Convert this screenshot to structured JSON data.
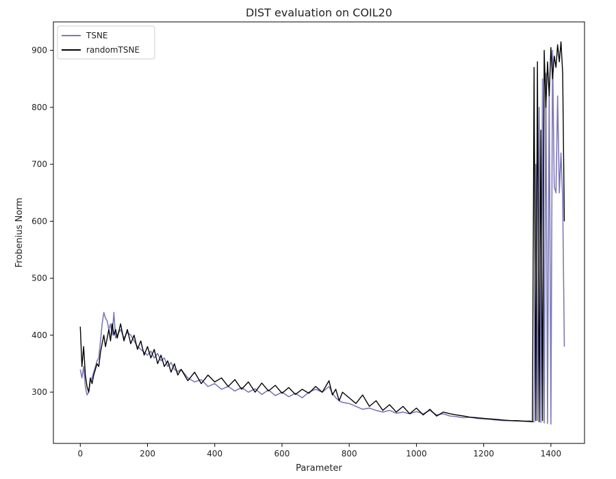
{
  "chart_data": {
    "type": "line",
    "title": "DIST evaluation on COIL20",
    "xlabel": "Parameter",
    "ylabel": "Frobenius Norm",
    "xlim": [
      -80,
      1500
    ],
    "ylim": [
      210,
      950
    ],
    "xticks": [
      0,
      200,
      400,
      600,
      800,
      1000,
      1200,
      1400
    ],
    "yticks": [
      300,
      400,
      500,
      600,
      700,
      800,
      900
    ],
    "grid": false,
    "legend_position": "top-left",
    "series": [
      {
        "name": "TSNE",
        "color": "#7b79b8",
        "x": [
          0,
          5,
          10,
          15,
          20,
          25,
          30,
          35,
          40,
          45,
          50,
          55,
          60,
          65,
          70,
          75,
          80,
          85,
          90,
          95,
          100,
          105,
          110,
          120,
          130,
          140,
          150,
          160,
          170,
          180,
          190,
          200,
          210,
          220,
          230,
          240,
          250,
          260,
          270,
          280,
          290,
          300,
          320,
          340,
          360,
          380,
          400,
          420,
          440,
          460,
          480,
          500,
          520,
          540,
          560,
          580,
          600,
          620,
          640,
          660,
          680,
          700,
          720,
          740,
          750,
          760,
          770,
          780,
          800,
          820,
          840,
          860,
          880,
          900,
          920,
          940,
          960,
          980,
          1000,
          1020,
          1040,
          1060,
          1080,
          1100,
          1120,
          1140,
          1160,
          1180,
          1200,
          1220,
          1240,
          1260,
          1280,
          1300,
          1320,
          1340,
          1350,
          1355,
          1360,
          1365,
          1370,
          1375,
          1380,
          1385,
          1390,
          1395,
          1400,
          1405,
          1410,
          1415,
          1420,
          1425,
          1430,
          1435,
          1440
        ],
        "y": [
          340,
          325,
          345,
          310,
          295,
          300,
          320,
          325,
          335,
          345,
          355,
          360,
          390,
          420,
          440,
          430,
          425,
          410,
          420,
          400,
          440,
          395,
          400,
          410,
          395,
          405,
          400,
          390,
          380,
          375,
          370,
          365,
          372,
          360,
          368,
          355,
          360,
          345,
          352,
          340,
          336,
          340,
          325,
          318,
          322,
          310,
          315,
          305,
          310,
          302,
          308,
          300,
          306,
          296,
          304,
          294,
          300,
          292,
          298,
          290,
          300,
          305,
          300,
          310,
          298,
          290,
          285,
          282,
          280,
          275,
          270,
          272,
          268,
          265,
          268,
          263,
          265,
          262,
          266,
          262,
          268,
          260,
          262,
          258,
          257,
          255,
          256,
          254,
          253,
          252,
          251,
          250,
          250,
          249,
          249,
          248,
          248,
          700,
          250,
          800,
          247,
          850,
          246,
          860,
          245,
          840,
          244,
          900,
          660,
          650,
          820,
          650,
          720,
          640,
          380
        ]
      },
      {
        "name": "randomTSNE",
        "color": "#000000",
        "x": [
          0,
          5,
          10,
          15,
          20,
          25,
          30,
          35,
          40,
          45,
          50,
          55,
          60,
          65,
          70,
          75,
          80,
          85,
          90,
          95,
          100,
          105,
          110,
          120,
          130,
          140,
          150,
          160,
          170,
          180,
          190,
          200,
          210,
          220,
          230,
          240,
          250,
          260,
          270,
          280,
          290,
          300,
          320,
          340,
          360,
          380,
          400,
          420,
          440,
          460,
          480,
          500,
          520,
          540,
          560,
          580,
          600,
          620,
          640,
          660,
          680,
          700,
          720,
          740,
          750,
          760,
          770,
          780,
          800,
          820,
          840,
          860,
          880,
          900,
          920,
          940,
          960,
          980,
          1000,
          1020,
          1040,
          1060,
          1080,
          1100,
          1120,
          1140,
          1160,
          1180,
          1200,
          1220,
          1240,
          1260,
          1280,
          1300,
          1320,
          1340,
          1345,
          1350,
          1355,
          1360,
          1365,
          1370,
          1375,
          1380,
          1385,
          1390,
          1395,
          1400,
          1405,
          1410,
          1415,
          1420,
          1425,
          1430,
          1435,
          1440
        ],
        "y": [
          415,
          345,
          380,
          330,
          310,
          300,
          325,
          315,
          330,
          340,
          350,
          345,
          370,
          385,
          400,
          380,
          395,
          410,
          390,
          420,
          400,
          410,
          395,
          420,
          390,
          410,
          385,
          400,
          375,
          390,
          365,
          380,
          360,
          375,
          350,
          365,
          345,
          355,
          335,
          350,
          330,
          340,
          320,
          335,
          315,
          330,
          318,
          325,
          310,
          322,
          305,
          318,
          300,
          316,
          302,
          312,
          298,
          308,
          296,
          305,
          298,
          310,
          300,
          320,
          295,
          305,
          285,
          300,
          290,
          280,
          295,
          275,
          285,
          268,
          278,
          265,
          275,
          262,
          272,
          260,
          270,
          258,
          265,
          262,
          260,
          258,
          256,
          255,
          254,
          253,
          252,
          251,
          250,
          250,
          249,
          249,
          248,
          870,
          250,
          880,
          248,
          760,
          250,
          900,
          800,
          880,
          820,
          905,
          850,
          890,
          870,
          910,
          880,
          915,
          860,
          600
        ]
      }
    ]
  }
}
